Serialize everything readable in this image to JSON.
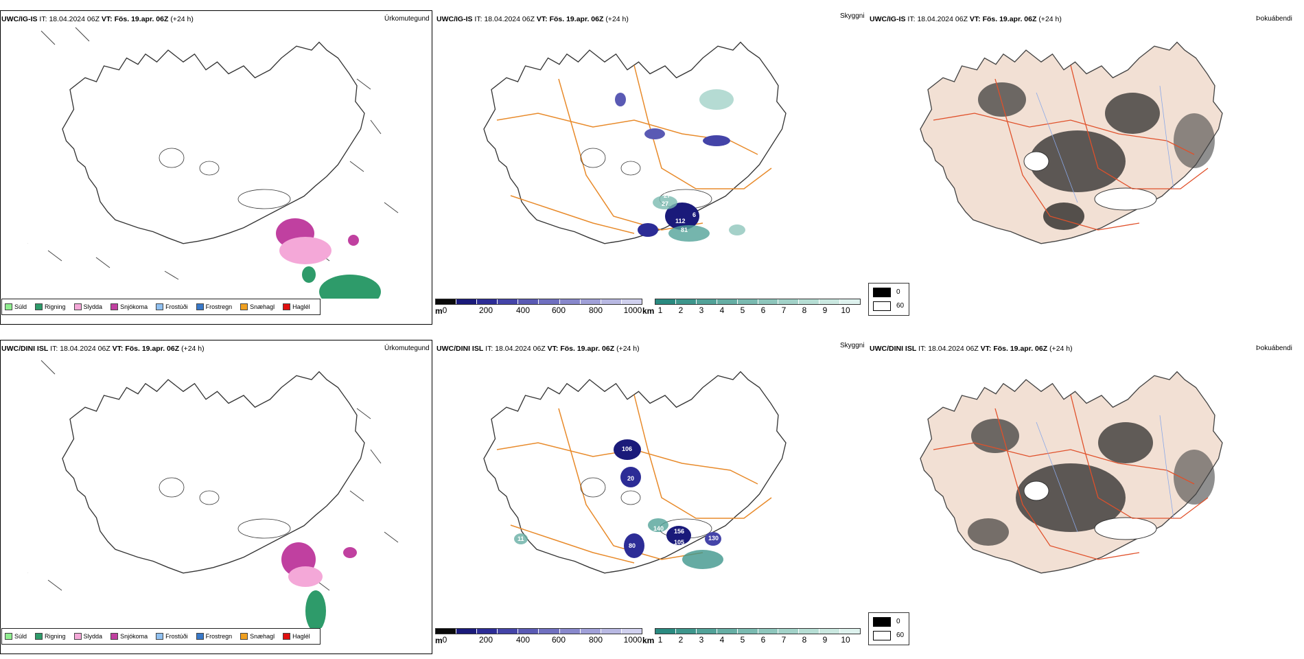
{
  "colors": {
    "sudl": "#90ee90",
    "rigning": "#2e9b6a",
    "slydda": "#f4a8d8",
    "snjokoma": "#c040a0",
    "frostudi": "#90c0f0",
    "frostregn": "#3878c8",
    "snaehagl": "#f0a020",
    "haglel": "#e01010",
    "ceiling": [
      "#0a0a0a",
      "#1a1a7a",
      "#2c2c96",
      "#4444a8",
      "#5a5ab4",
      "#7070c0",
      "#8888cc",
      "#a0a0d8",
      "#b8b8e2",
      "#d0d0ee"
    ],
    "vis": [
      "#2a8a80",
      "#3e968c",
      "#52a298",
      "#66aea4",
      "#7abab0",
      "#8ec6bc",
      "#a2d2c8",
      "#b6ded4",
      "#cae8e0",
      "#def2ee"
    ],
    "road": "#e88a2a",
    "land_fog": "#f2e0d4"
  },
  "rows": [
    {
      "model": "UWC/IG-IS",
      "it_label": "IT:",
      "it_value": "18.04.2024 06Z",
      "vt_label": "VT:",
      "vt_value": "Fös. 19.apr. 06Z",
      "lead": "(+24 h)",
      "ceiling_numbers": [
        "27",
        "27",
        "112",
        "81",
        "6"
      ]
    },
    {
      "model": "UWC/DINI ISL",
      "it_label": "IT:",
      "it_value": "18.04.2024 06Z",
      "vt_label": "VT:",
      "vt_value": "Fös. 19.apr. 06Z",
      "lead": "(+24 h)",
      "ceiling_numbers": [
        "106",
        "20",
        "140",
        "156",
        "105",
        "130",
        "80",
        "11"
      ]
    }
  ],
  "panel_labels": {
    "precip": "Úrkomutegund",
    "visibility": "Skyggni",
    "fog": "Þokuábendi"
  },
  "precip_legend": [
    "Súld",
    "Rigning",
    "Slydda",
    "Snjókoma",
    "Frostúði",
    "Frostregn",
    "Snæhagl",
    "Haglél"
  ],
  "ceiling_legend": {
    "unit": "m",
    "ticks": [
      "0",
      "200",
      "400",
      "600",
      "800",
      "1000"
    ]
  },
  "vis_legend": {
    "unit": "km",
    "ticks": [
      "1",
      "2",
      "3",
      "4",
      "5",
      "6",
      "7",
      "8",
      "9",
      "10"
    ]
  },
  "fog_legend": {
    "high": "0",
    "low": "60"
  }
}
